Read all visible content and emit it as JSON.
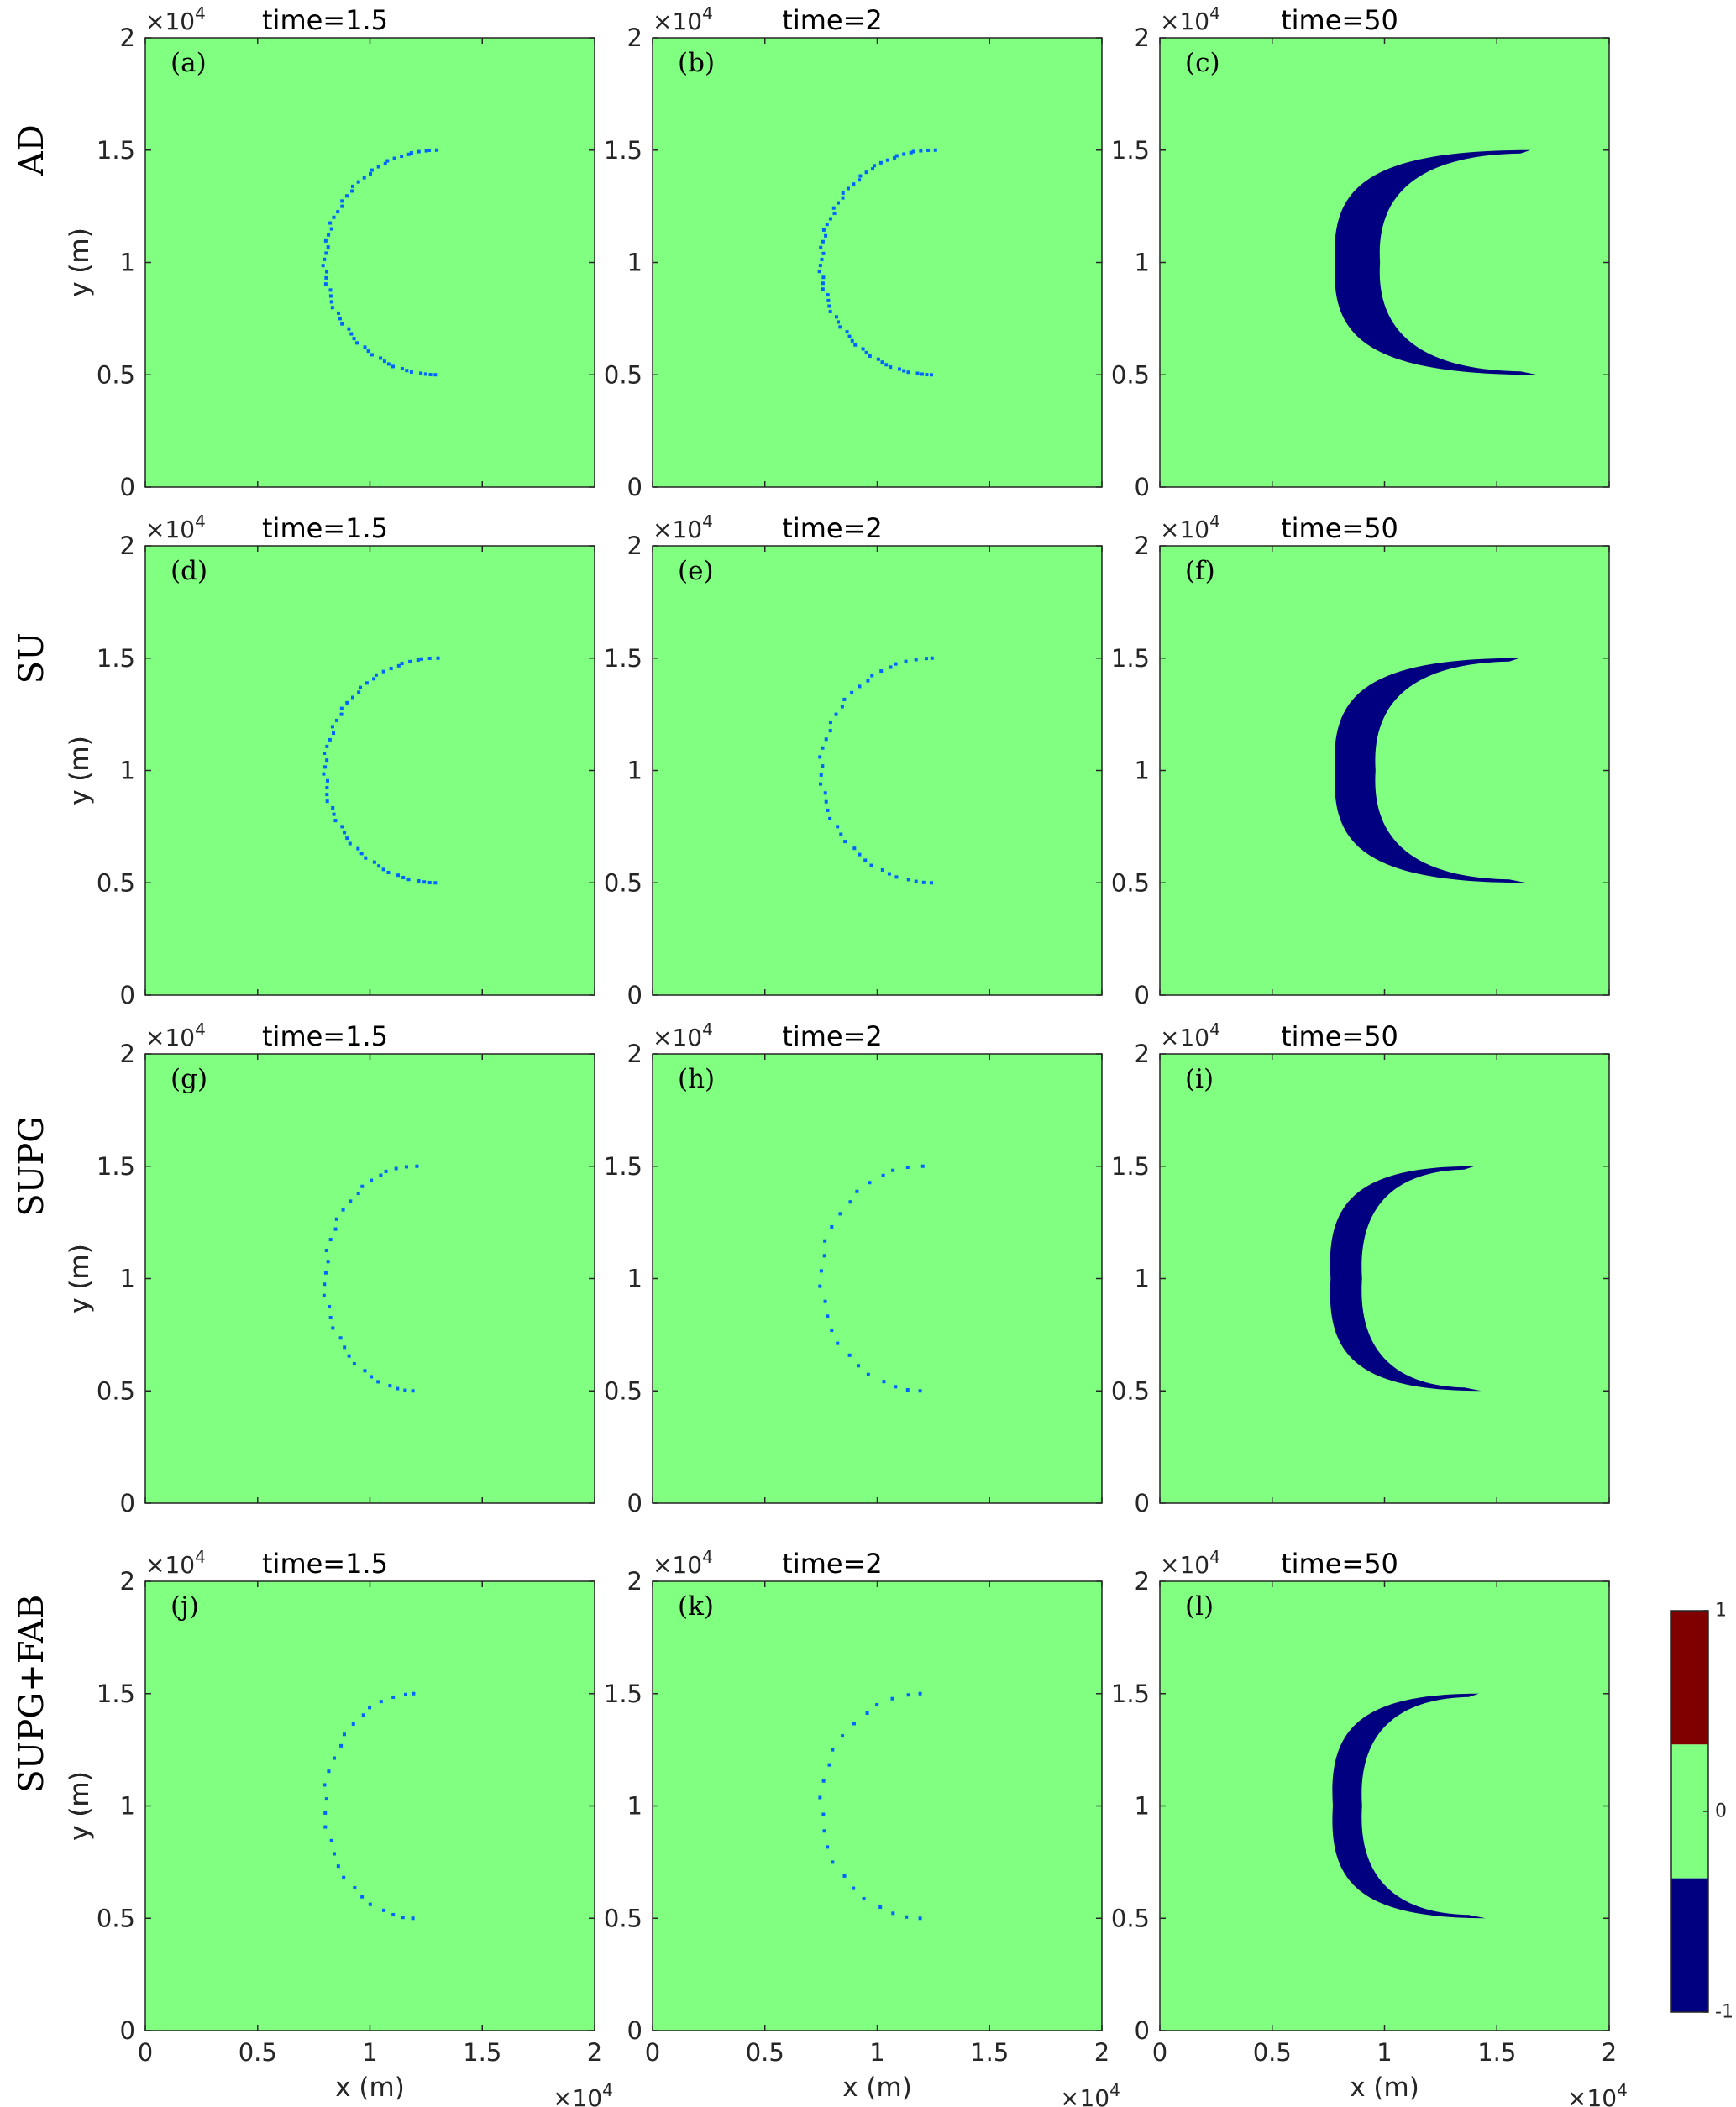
{
  "figure": {
    "row_labels": [
      "AD",
      "SU",
      "SUPG",
      "SUPG+FAB"
    ],
    "x_label": "x (m)",
    "y_label": "y (m)",
    "axis_multiplier": "×10",
    "axis_exponent": "4",
    "colors": {
      "background": "#80ff80",
      "negative": "#000080",
      "positive": "#800000",
      "scatter": "#0064ff",
      "frame": "#262626"
    }
  },
  "chart_data": [
    {
      "type": "heatmap",
      "panel": "(a)",
      "title": "time=1.5",
      "time": 1.5,
      "method": "AD",
      "shape": "sparse-arc",
      "arc": {
        "cx": 1.3,
        "cy": 1.0,
        "rx": 0.5,
        "ry": 0.5,
        "count": 58
      },
      "x_ticks": [
        "0",
        "0.5",
        "1",
        "1.5",
        "2"
      ],
      "y_ticks": [
        "0",
        "0.5",
        "1",
        "1.5",
        "2"
      ],
      "xlim": [
        0,
        2
      ],
      "ylim": [
        0,
        2
      ],
      "grid": false
    },
    {
      "type": "heatmap",
      "panel": "(b)",
      "title": "time=2",
      "time": 2,
      "method": "AD",
      "shape": "sparse-arc",
      "arc": {
        "cx": 1.25,
        "cy": 1.0,
        "rx": 0.5,
        "ry": 0.5,
        "count": 60
      },
      "x_ticks": [
        "0",
        "0.5",
        "1",
        "1.5",
        "2"
      ],
      "y_ticks": [
        "0",
        "0.5",
        "1",
        "1.5",
        "2"
      ],
      "xlim": [
        0,
        2
      ],
      "ylim": [
        0,
        2
      ],
      "grid": false
    },
    {
      "type": "heatmap",
      "panel": "(c)",
      "title": "time=50",
      "time": 50,
      "method": "AD",
      "shape": "crescent",
      "crescent": {
        "tip_x": 1.65,
        "outer_x": 0.78,
        "inner_x": 0.98,
        "top_y": 1.5,
        "bottom_y": 0.5
      },
      "x_ticks": [
        "0",
        "0.5",
        "1",
        "1.5",
        "2"
      ],
      "y_ticks": [
        "0",
        "0.5",
        "1",
        "1.5",
        "2"
      ],
      "xlim": [
        0,
        2
      ],
      "ylim": [
        0,
        2
      ],
      "grid": false
    },
    {
      "type": "heatmap",
      "panel": "(d)",
      "title": "time=1.5",
      "time": 1.5,
      "method": "SU",
      "shape": "sparse-arc",
      "arc": {
        "cx": 1.3,
        "cy": 1.0,
        "rx": 0.5,
        "ry": 0.5,
        "count": 52
      },
      "x_ticks": [
        "0",
        "0.5",
        "1",
        "1.5",
        "2"
      ],
      "y_ticks": [
        "0",
        "0.5",
        "1",
        "1.5",
        "2"
      ],
      "xlim": [
        0,
        2
      ],
      "ylim": [
        0,
        2
      ],
      "grid": false
    },
    {
      "type": "heatmap",
      "panel": "(e)",
      "title": "time=2",
      "time": 2,
      "method": "SU",
      "shape": "sparse-arc",
      "arc": {
        "cx": 1.25,
        "cy": 1.0,
        "rx": 0.5,
        "ry": 0.5,
        "count": 40
      },
      "x_ticks": [
        "0",
        "0.5",
        "1",
        "1.5",
        "2"
      ],
      "y_ticks": [
        "0",
        "0.5",
        "1",
        "1.5",
        "2"
      ],
      "xlim": [
        0,
        2
      ],
      "ylim": [
        0,
        2
      ],
      "grid": false
    },
    {
      "type": "heatmap",
      "panel": "(f)",
      "title": "time=50",
      "time": 50,
      "method": "SU",
      "shape": "crescent",
      "crescent": {
        "tip_x": 1.6,
        "outer_x": 0.78,
        "inner_x": 0.96,
        "top_y": 1.5,
        "bottom_y": 0.5
      },
      "x_ticks": [
        "0",
        "0.5",
        "1",
        "1.5",
        "2"
      ],
      "y_ticks": [
        "0",
        "0.5",
        "1",
        "1.5",
        "2"
      ],
      "xlim": [
        0,
        2
      ],
      "ylim": [
        0,
        2
      ],
      "grid": false
    },
    {
      "type": "heatmap",
      "panel": "(g)",
      "title": "time=1.5",
      "time": 1.5,
      "method": "SUPG",
      "shape": "sparse-arc",
      "arc": {
        "cx": 1.2,
        "cy": 1.0,
        "rx": 0.4,
        "ry": 0.5,
        "count": 32
      },
      "x_ticks": [
        "0",
        "0.5",
        "1",
        "1.5",
        "2"
      ],
      "y_ticks": [
        "0",
        "0.5",
        "1",
        "1.5",
        "2"
      ],
      "xlim": [
        0,
        2
      ],
      "ylim": [
        0,
        2
      ],
      "grid": false
    },
    {
      "type": "heatmap",
      "panel": "(h)",
      "title": "time=2",
      "time": 2,
      "method": "SUPG",
      "shape": "sparse-arc",
      "arc": {
        "cx": 1.2,
        "cy": 1.0,
        "rx": 0.45,
        "ry": 0.5,
        "count": 24
      },
      "x_ticks": [
        "0",
        "0.5",
        "1",
        "1.5",
        "2"
      ],
      "y_ticks": [
        "0",
        "0.5",
        "1",
        "1.5",
        "2"
      ],
      "xlim": [
        0,
        2
      ],
      "ylim": [
        0,
        2
      ],
      "grid": false
    },
    {
      "type": "heatmap",
      "panel": "(i)",
      "title": "time=50",
      "time": 50,
      "method": "SUPG",
      "shape": "crescent",
      "crescent": {
        "tip_x": 1.4,
        "outer_x": 0.76,
        "inner_x": 0.9,
        "top_y": 1.5,
        "bottom_y": 0.5
      },
      "x_ticks": [
        "0",
        "0.5",
        "1",
        "1.5",
        "2"
      ],
      "y_ticks": [
        "0",
        "0.5",
        "1",
        "1.5",
        "2"
      ],
      "xlim": [
        0,
        2
      ],
      "ylim": [
        0,
        2
      ],
      "grid": false
    },
    {
      "type": "heatmap",
      "panel": "(j)",
      "title": "time=1.5",
      "time": 1.5,
      "method": "SUPG+FAB",
      "shape": "sparse-arc",
      "arc": {
        "cx": 1.2,
        "cy": 1.0,
        "rx": 0.4,
        "ry": 0.5,
        "count": 26
      },
      "x_ticks": [
        "0",
        "0.5",
        "1",
        "1.5",
        "2"
      ],
      "y_ticks": [
        "0",
        "0.5",
        "1",
        "1.5",
        "2"
      ],
      "xlim": [
        0,
        2
      ],
      "ylim": [
        0,
        2
      ],
      "grid": false
    },
    {
      "type": "heatmap",
      "panel": "(k)",
      "title": "time=2",
      "time": 2,
      "method": "SUPG+FAB",
      "shape": "sparse-arc",
      "arc": {
        "cx": 1.2,
        "cy": 1.0,
        "rx": 0.45,
        "ry": 0.5,
        "count": 22
      },
      "x_ticks": [
        "0",
        "0.5",
        "1",
        "1.5",
        "2"
      ],
      "y_ticks": [
        "0",
        "0.5",
        "1",
        "1.5",
        "2"
      ],
      "xlim": [
        0,
        2
      ],
      "ylim": [
        0,
        2
      ],
      "grid": false
    },
    {
      "type": "heatmap",
      "panel": "(l)",
      "title": "time=50",
      "time": 50,
      "method": "SUPG+FAB",
      "shape": "crescent",
      "crescent": {
        "tip_x": 1.42,
        "outer_x": 0.77,
        "inner_x": 0.9,
        "top_y": 1.5,
        "bottom_y": 0.5
      },
      "x_ticks": [
        "0",
        "0.5",
        "1",
        "1.5",
        "2"
      ],
      "y_ticks": [
        "0",
        "0.5",
        "1",
        "1.5",
        "2"
      ],
      "xlim": [
        0,
        2
      ],
      "ylim": [
        0,
        2
      ],
      "grid": false
    }
  ],
  "colorbar": {
    "ticks": [
      "1",
      "0",
      "-1"
    ],
    "values": [
      1,
      0,
      -1
    ],
    "colors": [
      "#800000",
      "#80ff80",
      "#000080"
    ]
  }
}
